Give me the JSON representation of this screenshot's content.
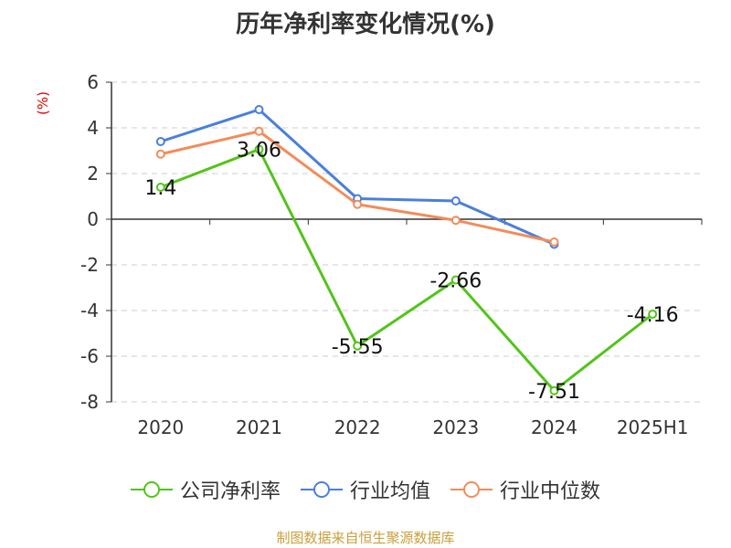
{
  "chart_data": {
    "type": "line",
    "title": "历年净利率变化情况(%)",
    "unit_label": "(%)",
    "categories": [
      "2020",
      "2021",
      "2022",
      "2023",
      "2024",
      "2025H1"
    ],
    "ylim": [
      -8,
      6
    ],
    "yticks": [
      6,
      4,
      2,
      0,
      -2,
      -4,
      -6,
      -8
    ],
    "grid": true,
    "legend": "bottom",
    "series": [
      {
        "name": "公司净利率",
        "color": "#52c41a",
        "values": [
          1.4,
          3.06,
          -5.55,
          -2.66,
          -7.51,
          -4.16
        ],
        "labels": [
          "1.4",
          "3.06",
          "-5.55",
          "-2.66",
          "-7.51",
          "-4.16"
        ]
      },
      {
        "name": "行业均值",
        "color": "#4a7fdc",
        "values": [
          3.4,
          4.8,
          0.9,
          0.8,
          -1.1,
          null
        ]
      },
      {
        "name": "行业中位数",
        "color": "#f28c5a",
        "values": [
          2.85,
          3.85,
          0.65,
          -0.05,
          -1.0,
          null
        ]
      }
    ]
  },
  "footer": {
    "source": "制图数据来自恒生聚源数据库"
  }
}
